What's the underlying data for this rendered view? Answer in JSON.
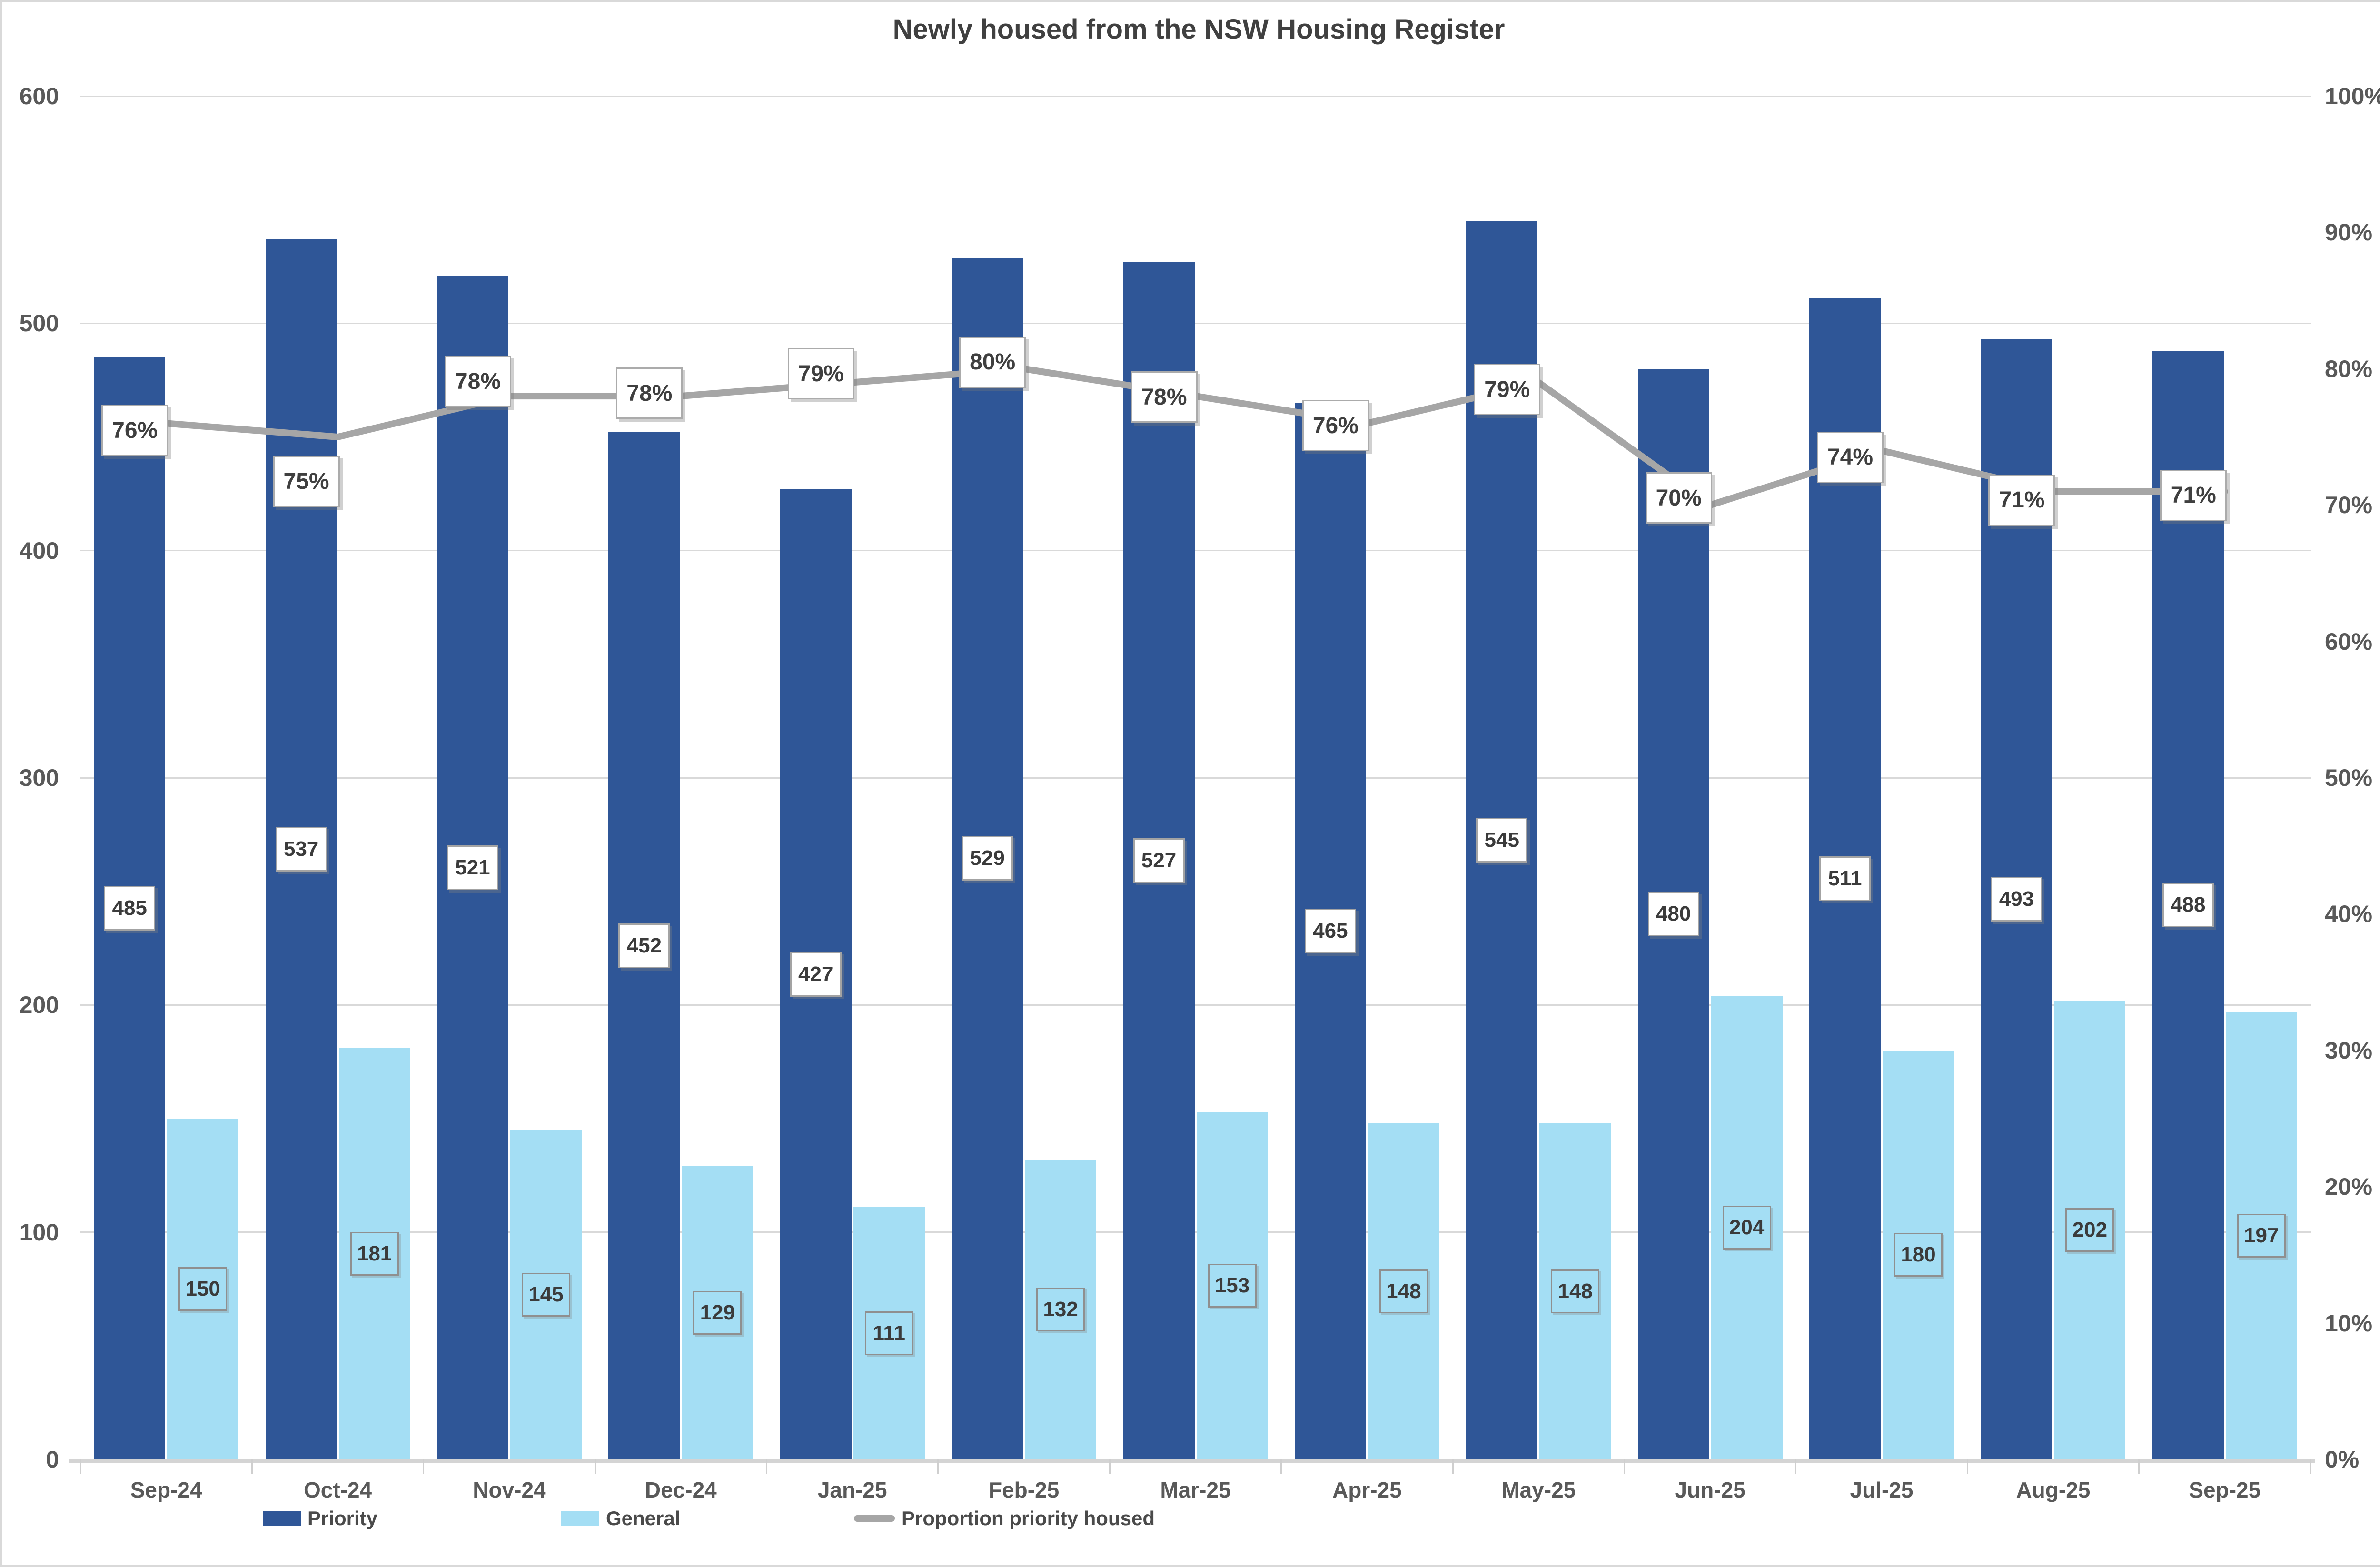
{
  "title": "Newly housed from the NSW Housing Register",
  "chart_data": {
    "type": "combo",
    "categories": [
      "Sep-24",
      "Oct-24",
      "Nov-24",
      "Dec-24",
      "Jan-25",
      "Feb-25",
      "Mar-25",
      "Apr-25",
      "May-25",
      "Jun-25",
      "Jul-25",
      "Aug-25",
      "Sep-25"
    ],
    "series": [
      {
        "name": "Priority",
        "type": "bar",
        "axis": "left",
        "color": "#2f5697",
        "values": [
          485,
          537,
          521,
          452,
          427,
          529,
          527,
          465,
          545,
          480,
          511,
          493,
          488
        ]
      },
      {
        "name": "General",
        "type": "bar",
        "axis": "left",
        "color": "#a4def4",
        "values": [
          150,
          181,
          145,
          129,
          111,
          132,
          153,
          148,
          148,
          204,
          180,
          202,
          197
        ]
      },
      {
        "name": "Proportion priority housed",
        "type": "line",
        "axis": "right",
        "color": "#a6a6a6",
        "values_pct": [
          76,
          75,
          78,
          78,
          79,
          80,
          78,
          76,
          79,
          70,
          74,
          71,
          71
        ],
        "value_labels": [
          "76%",
          "75%",
          "78%",
          "78%",
          "79%",
          "80%",
          "78%",
          "76%",
          "79%",
          "70%",
          "74%",
          "71%",
          "71%"
        ]
      }
    ],
    "left_axis": {
      "min": 0,
      "max": 600,
      "step": 100,
      "labels_top_to_bottom": [
        "600",
        "500",
        "400",
        "300",
        "200",
        "100",
        "0"
      ]
    },
    "right_axis": {
      "min": 0,
      "max": 100,
      "step": 10,
      "labels_top_to_bottom": [
        "100%",
        "90%",
        "80%",
        "70%",
        "60%",
        "50%",
        "40%",
        "30%",
        "20%",
        "10%",
        "0%"
      ]
    },
    "grid": true,
    "legend_position": "bottom",
    "line_label_dx": -66,
    "line_label_dy": [
      15,
      93,
      -31,
      -6,
      -18,
      -14,
      2,
      5,
      15,
      -15,
      14,
      18,
      8
    ]
  },
  "legend": {
    "items": [
      {
        "label": "Priority"
      },
      {
        "label": "General"
      },
      {
        "label": "Proportion priority housed"
      }
    ]
  }
}
